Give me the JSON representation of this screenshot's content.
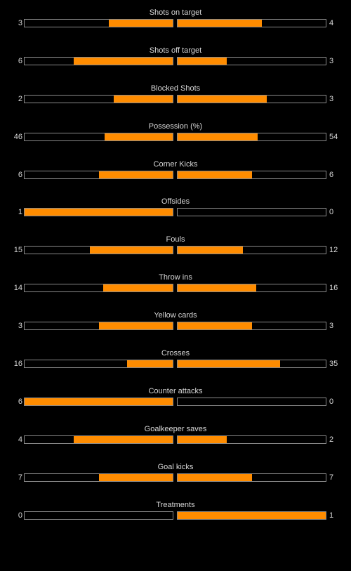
{
  "colors": {
    "background": "#000000",
    "bar_fill": "#ff8c00",
    "bar_border": "#8a8a8a",
    "text": "#d8d8d8"
  },
  "stats": [
    {
      "label": "Shots on target",
      "home": "3",
      "away": "4",
      "home_fraction": 0.43,
      "away_fraction": 0.57
    },
    {
      "label": "Shots off target",
      "home": "6",
      "away": "3",
      "home_fraction": 0.67,
      "away_fraction": 0.33
    },
    {
      "label": "Blocked Shots",
      "home": "2",
      "away": "3",
      "home_fraction": 0.4,
      "away_fraction": 0.6
    },
    {
      "label": "Possession (%)",
      "home": "46",
      "away": "54",
      "home_fraction": 0.46,
      "away_fraction": 0.54
    },
    {
      "label": "Corner Kicks",
      "home": "6",
      "away": "6",
      "home_fraction": 0.5,
      "away_fraction": 0.5
    },
    {
      "label": "Offsides",
      "home": "1",
      "away": "0",
      "home_fraction": 1.0,
      "away_fraction": 0.0
    },
    {
      "label": "Fouls",
      "home": "15",
      "away": "12",
      "home_fraction": 0.56,
      "away_fraction": 0.44
    },
    {
      "label": "Throw ins",
      "home": "14",
      "away": "16",
      "home_fraction": 0.47,
      "away_fraction": 0.53
    },
    {
      "label": "Yellow cards",
      "home": "3",
      "away": "3",
      "home_fraction": 0.5,
      "away_fraction": 0.5
    },
    {
      "label": "Crosses",
      "home": "16",
      "away": "35",
      "home_fraction": 0.31,
      "away_fraction": 0.69
    },
    {
      "label": "Counter attacks",
      "home": "6",
      "away": "0",
      "home_fraction": 1.0,
      "away_fraction": 0.0
    },
    {
      "label": "Goalkeeper saves",
      "home": "4",
      "away": "2",
      "home_fraction": 0.67,
      "away_fraction": 0.33
    },
    {
      "label": "Goal kicks",
      "home": "7",
      "away": "7",
      "home_fraction": 0.5,
      "away_fraction": 0.5
    },
    {
      "label": "Treatments",
      "home": "0",
      "away": "1",
      "home_fraction": 0.0,
      "away_fraction": 1.0
    }
  ]
}
